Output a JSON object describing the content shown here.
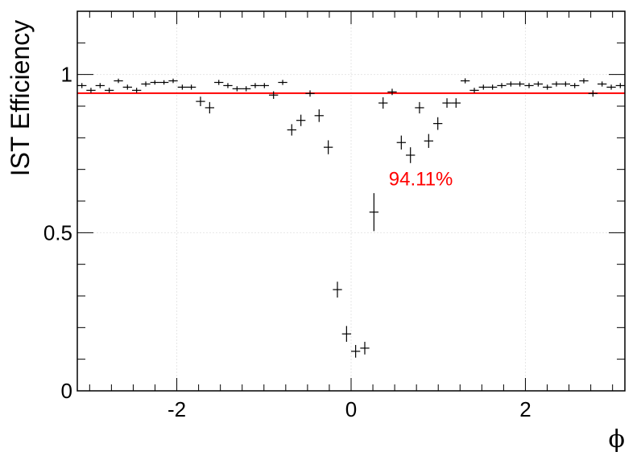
{
  "chart_data": {
    "type": "scatter",
    "title": "",
    "xlabel": "ϕ",
    "ylabel": "IST Efficiency",
    "xlim": [
      -3.1416,
      3.1416
    ],
    "ylim": [
      0,
      1.2
    ],
    "grid": true,
    "x_ticks": [
      -2,
      0,
      2
    ],
    "x_tick_labels": [
      "-2",
      "0",
      "2"
    ],
    "y_ticks": [
      0,
      0.5,
      1
    ],
    "y_tick_labels": [
      "0",
      "0.5",
      "1"
    ],
    "fit_line": {
      "y": 0.9411,
      "color": "#ff0000"
    },
    "annotation": {
      "text": "94.11%",
      "x": 0.8,
      "y": 0.67,
      "color": "#ff0000"
    },
    "colors": {
      "points": "#000000",
      "axes": "#000000",
      "grid": "#e6e6e6"
    },
    "series": [
      {
        "x": [
          -3.089,
          -2.985,
          -2.88,
          -2.775,
          -2.67,
          -2.566,
          -2.461,
          -2.356,
          -2.252,
          -2.147,
          -2.042,
          -1.937,
          -1.833,
          -1.728,
          -1.623,
          -1.518,
          -1.414,
          -1.309,
          -1.204,
          -1.1,
          -0.995,
          -0.89,
          -0.785,
          -0.681,
          -0.576,
          -0.471,
          -0.367,
          -0.262,
          -0.157,
          -0.052,
          0.052,
          0.157,
          0.262,
          0.367,
          0.471,
          0.576,
          0.681,
          0.785,
          0.89,
          0.995,
          1.1,
          1.204,
          1.309,
          1.414,
          1.518,
          1.623,
          1.728,
          1.833,
          1.937,
          2.042,
          2.147,
          2.252,
          2.356,
          2.461,
          2.566,
          2.67,
          2.775,
          2.88,
          2.985,
          3.089
        ],
        "y": [
          0.965,
          0.95,
          0.965,
          0.95,
          0.98,
          0.96,
          0.95,
          0.97,
          0.975,
          0.975,
          0.98,
          0.96,
          0.96,
          0.915,
          0.895,
          0.975,
          0.965,
          0.955,
          0.955,
          0.965,
          0.965,
          0.935,
          0.975,
          0.825,
          0.855,
          0.94,
          0.87,
          0.77,
          0.32,
          0.18,
          0.125,
          0.135,
          0.565,
          0.91,
          0.945,
          0.785,
          0.745,
          0.895,
          0.79,
          0.845,
          0.91,
          0.91,
          0.98,
          0.95,
          0.96,
          0.96,
          0.965,
          0.97,
          0.97,
          0.965,
          0.97,
          0.96,
          0.97,
          0.97,
          0.965,
          0.98,
          0.94,
          0.97,
          0.96,
          0.965
        ],
        "y_err": [
          0.008,
          0.008,
          0.008,
          0.008,
          0.007,
          0.008,
          0.008,
          0.008,
          0.007,
          0.007,
          0.007,
          0.008,
          0.008,
          0.015,
          0.018,
          0.008,
          0.008,
          0.008,
          0.008,
          0.008,
          0.008,
          0.012,
          0.008,
          0.018,
          0.018,
          0.01,
          0.02,
          0.022,
          0.025,
          0.025,
          0.02,
          0.02,
          0.06,
          0.018,
          0.01,
          0.022,
          0.025,
          0.018,
          0.022,
          0.02,
          0.015,
          0.015,
          0.008,
          0.008,
          0.008,
          0.008,
          0.008,
          0.008,
          0.008,
          0.008,
          0.008,
          0.008,
          0.008,
          0.008,
          0.008,
          0.008,
          0.01,
          0.008,
          0.008,
          0.008
        ]
      }
    ]
  }
}
